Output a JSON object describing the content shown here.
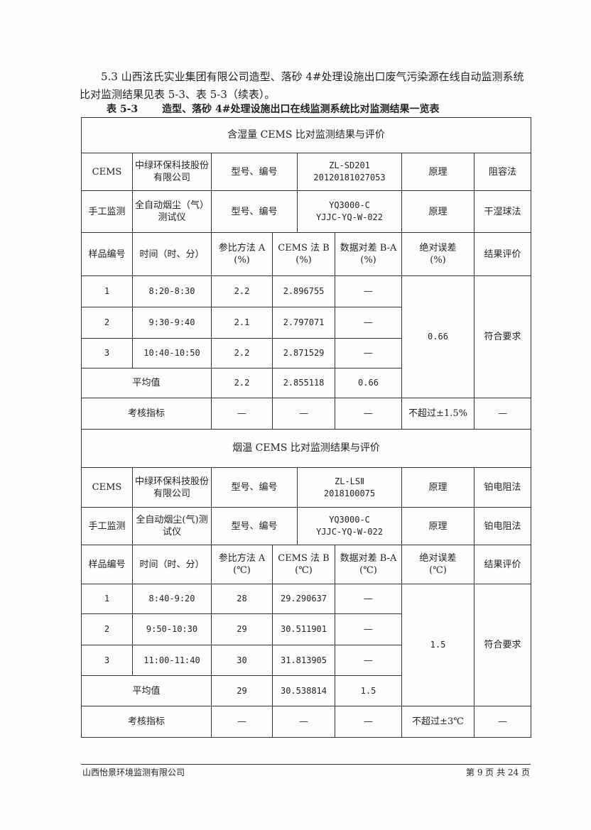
{
  "intro": "5.3 山西泫氏实业集团有限公司造型、落砂 4#处理设施出口废气污染源在线自动监测系统比对监测结果见表 5-3、表 5-3（续表）。",
  "caption": {
    "number": "表 5-3",
    "title": "造型、落砂 4#处理设施出口在线监测系统比对监测结果一览表"
  },
  "sections": [
    {
      "title": "含湿量 CEMS 比对监测结果与评价",
      "cems": {
        "label": "CEMS",
        "maker": "中绿环保科技股份有限公司",
        "model_label": "型号、编号",
        "model": "ZL-SD201",
        "serial": "20120181027053",
        "principle_label": "原理",
        "principle": "阻容法"
      },
      "manual": {
        "label": "手工监测",
        "maker": "全自动烟尘（气）测试仪",
        "model_label": "型号、编号",
        "model": "YQ3000-C",
        "serial": "YJJC-YQ-W-022",
        "principle_label": "原理",
        "principle": "干湿球法"
      },
      "headers": [
        "样品编号",
        "时间（时、分）",
        "参比方法 A",
        "(%)",
        "CEMS 法 B",
        "(%)",
        "数据对差 B-A",
        "(%)",
        "绝对误差",
        "(%)",
        "结果评价"
      ],
      "rows": [
        {
          "no": "1",
          "time": "8:20-8:30",
          "a": "2.2",
          "b": "2.896755",
          "diff": "—"
        },
        {
          "no": "2",
          "time": "9:30-9:40",
          "a": "2.1",
          "b": "2.797071",
          "diff": "—"
        },
        {
          "no": "3",
          "time": "10:40-10:50",
          "a": "2.2",
          "b": "2.871529",
          "diff": "—"
        }
      ],
      "abs_error": "0.66",
      "result": "符合要求",
      "avg": {
        "label": "平均值",
        "a": "2.2",
        "b": "2.855118",
        "diff": "0.66"
      },
      "assess": {
        "label": "考核指标",
        "a": "—",
        "b": "—",
        "diff": "—",
        "limit": "不超过±1.5%",
        "result": "—"
      }
    },
    {
      "title": "烟温 CEMS 比对监测结果与评价",
      "cems": {
        "label": "CEMS",
        "maker": "中绿环保科技股份有限公司",
        "model_label": "型号、编号",
        "model": "ZL-LSⅡ",
        "serial": "2018100075",
        "principle_label": "原理",
        "principle": "铂电阻法"
      },
      "manual": {
        "label": "手工监测",
        "maker": "全自动烟尘(气)测试仪",
        "model_label": "型号、编号",
        "model": "YQ3000-C",
        "serial": "YJJC-YQ-W-022",
        "principle_label": "原理",
        "principle": "铂电阻法"
      },
      "headers": [
        "样品编号",
        "时间（时、分）",
        "参比方法 A",
        "(℃)",
        "CEMS 法 B",
        "(℃)",
        "数据对差 B-A",
        "(℃)",
        "绝对误差",
        "(℃)",
        "结果评价"
      ],
      "rows": [
        {
          "no": "1",
          "time": "8:40-9:20",
          "a": "28",
          "b": "29.290637",
          "diff": "—"
        },
        {
          "no": "2",
          "time": "9:50-10:30",
          "a": "29",
          "b": "30.511901",
          "diff": "—"
        },
        {
          "no": "3",
          "time": "11:00-11:40",
          "a": "30",
          "b": "31.813905",
          "diff": "—"
        }
      ],
      "abs_error": "1.5",
      "result": "符合要求",
      "avg": {
        "label": "平均值",
        "a": "29",
        "b": "30.538814",
        "diff": "1.5"
      },
      "assess": {
        "label": "考核指标",
        "a": "—",
        "b": "—",
        "diff": "—",
        "limit": "不超过±3℃",
        "result": "—"
      }
    }
  ],
  "footer": {
    "company": "山西怡景环境监测有限公司",
    "page": "第 9 页 共 24 页"
  }
}
